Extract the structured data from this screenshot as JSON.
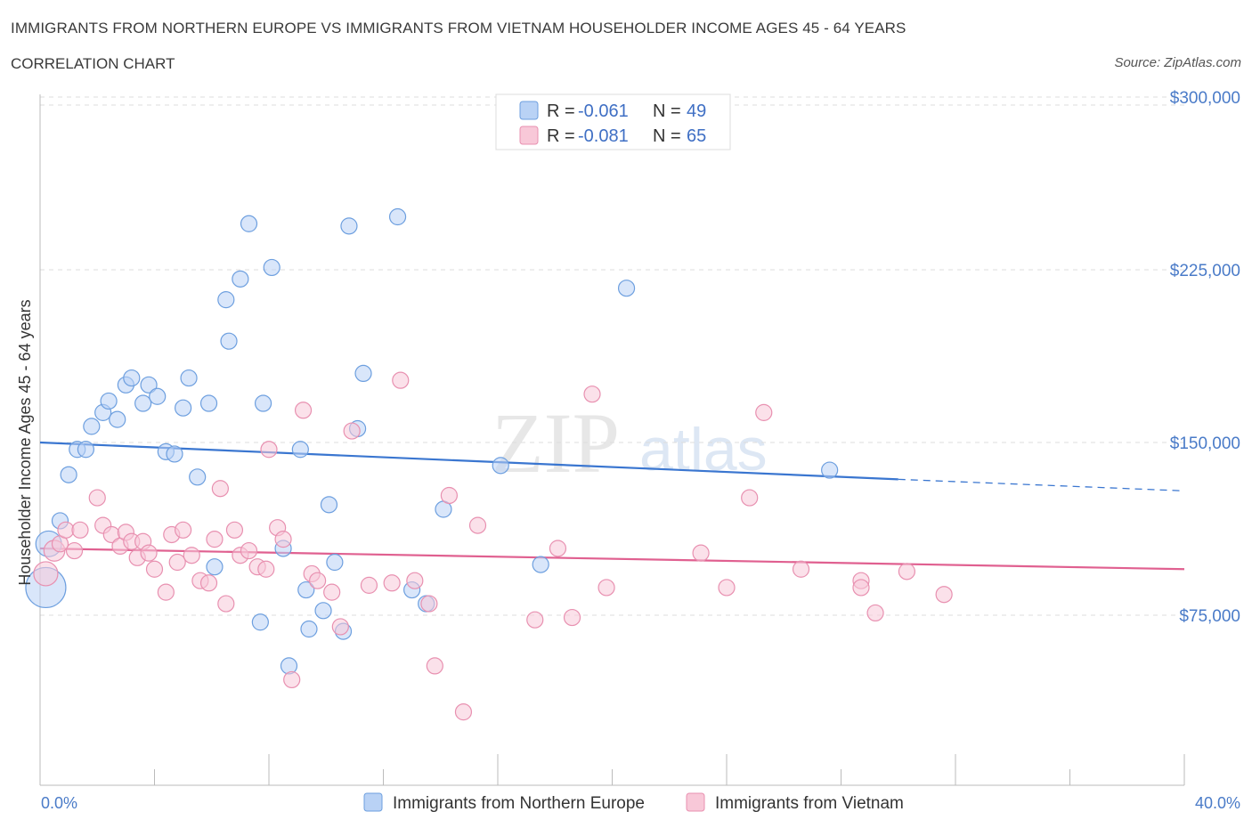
{
  "title": "IMMIGRANTS FROM NORTHERN EUROPE VS IMMIGRANTS FROM VIETNAM HOUSEHOLDER INCOME AGES 45 - 64 YEARS",
  "subtitle": "CORRELATION CHART",
  "source": "Source: ZipAtlas.com",
  "watermark": {
    "zip": "ZIP",
    "atlas": "atlas"
  },
  "colors": {
    "blue_fill": "#b9d2f5",
    "blue_stroke": "#6d9fdf",
    "blue_line": "#3a76d0",
    "pink_fill": "#f8c8d8",
    "pink_stroke": "#e890b0",
    "pink_line": "#e06090",
    "tick_label": "#4a7bc8",
    "grid": "#dddddd"
  },
  "chart_data": {
    "type": "scatter",
    "title": "IMMIGRANTS FROM NORTHERN EUROPE VS IMMIGRANTS FROM VIETNAM HOUSEHOLDER INCOME AGES 45 - 64 YEARS",
    "ylabel": "Householder Income Ages 45 - 64 years",
    "xlim": [
      0,
      40
    ],
    "ylim": [
      0,
      300000
    ],
    "x_tick_labels": [
      "0.0%",
      "40.0%"
    ],
    "y_ticks": [
      75000,
      150000,
      225000,
      300000
    ],
    "y_tick_labels": [
      "$75,000",
      "$150,000",
      "$225,000",
      "$300,000"
    ],
    "legend": [
      {
        "r_label": "R =",
        "r_value": "-0.061",
        "n_label": "N =",
        "n_value": "49"
      },
      {
        "r_label": "R =",
        "r_value": "-0.081",
        "n_label": "N =",
        "n_value": "65"
      }
    ],
    "series": [
      {
        "name": "Immigrants from Northern Europe",
        "color": "blue",
        "trend": {
          "x0": 0,
          "y0": 150000,
          "x1": 30,
          "y1": 134000,
          "dash_to_x": 40,
          "dash_to_y": 129000
        },
        "points": [
          [
            0.2,
            87000,
            2.5
          ],
          [
            0.3,
            106000,
            1.6
          ],
          [
            0.7,
            116000,
            1
          ],
          [
            1.0,
            136000,
            1
          ],
          [
            1.3,
            147000,
            1
          ],
          [
            1.6,
            147000,
            1
          ],
          [
            1.8,
            157000,
            1
          ],
          [
            2.2,
            163000,
            1
          ],
          [
            2.4,
            168000,
            1
          ],
          [
            2.7,
            160000,
            1
          ],
          [
            3.0,
            175000,
            1
          ],
          [
            3.2,
            178000,
            1
          ],
          [
            3.6,
            167000,
            1
          ],
          [
            3.8,
            175000,
            1
          ],
          [
            4.1,
            170000,
            1
          ],
          [
            4.4,
            146000,
            1
          ],
          [
            4.7,
            145000,
            1
          ],
          [
            5.0,
            165000,
            1
          ],
          [
            5.2,
            178000,
            1
          ],
          [
            5.5,
            135000,
            1
          ],
          [
            5.9,
            167000,
            1
          ],
          [
            6.1,
            96000,
            1
          ],
          [
            6.5,
            212000,
            1
          ],
          [
            6.6,
            194000,
            1
          ],
          [
            7.0,
            221000,
            1
          ],
          [
            7.3,
            245000,
            1
          ],
          [
            7.7,
            72000,
            1
          ],
          [
            7.8,
            167000,
            1
          ],
          [
            8.1,
            226000,
            1
          ],
          [
            8.5,
            104000,
            1
          ],
          [
            8.7,
            53000,
            1
          ],
          [
            9.1,
            147000,
            1
          ],
          [
            9.3,
            86000,
            1
          ],
          [
            9.4,
            69000,
            1
          ],
          [
            9.9,
            77000,
            1
          ],
          [
            10.1,
            123000,
            1
          ],
          [
            10.3,
            98000,
            1
          ],
          [
            10.6,
            68000,
            1
          ],
          [
            10.8,
            244000,
            1
          ],
          [
            11.1,
            156000,
            1
          ],
          [
            11.3,
            180000,
            1
          ],
          [
            12.5,
            248000,
            1
          ],
          [
            13.0,
            86000,
            1
          ],
          [
            13.5,
            80000,
            1
          ],
          [
            14.1,
            121000,
            1
          ],
          [
            16.1,
            140000,
            1
          ],
          [
            17.5,
            97000,
            1
          ],
          [
            20.5,
            217000,
            1
          ],
          [
            27.6,
            138000,
            1
          ]
        ]
      },
      {
        "name": "Immigrants from Vietnam",
        "color": "pink",
        "trend": {
          "x0": 0,
          "y0": 104000,
          "x1": 40,
          "y1": 95000
        },
        "points": [
          [
            0.2,
            93000,
            1.5
          ],
          [
            0.5,
            103000,
            1.3
          ],
          [
            0.7,
            106000,
            1
          ],
          [
            0.9,
            112000,
            1
          ],
          [
            1.2,
            103000,
            1
          ],
          [
            1.4,
            112000,
            1
          ],
          [
            2.0,
            126000,
            1
          ],
          [
            2.2,
            114000,
            1
          ],
          [
            2.5,
            110000,
            1
          ],
          [
            2.8,
            105000,
            1
          ],
          [
            3.0,
            111000,
            1
          ],
          [
            3.2,
            107000,
            1
          ],
          [
            3.4,
            100000,
            1
          ],
          [
            3.6,
            107000,
            1
          ],
          [
            3.8,
            102000,
            1
          ],
          [
            4.0,
            95000,
            1
          ],
          [
            4.4,
            85000,
            1
          ],
          [
            4.6,
            110000,
            1
          ],
          [
            4.8,
            98000,
            1
          ],
          [
            5.0,
            112000,
            1
          ],
          [
            5.3,
            101000,
            1
          ],
          [
            5.6,
            90000,
            1
          ],
          [
            5.9,
            89000,
            1
          ],
          [
            6.1,
            108000,
            1
          ],
          [
            6.3,
            130000,
            1
          ],
          [
            6.5,
            80000,
            1
          ],
          [
            6.8,
            112000,
            1
          ],
          [
            7.0,
            101000,
            1
          ],
          [
            7.3,
            103000,
            1
          ],
          [
            7.6,
            96000,
            1
          ],
          [
            7.9,
            95000,
            1
          ],
          [
            8.0,
            147000,
            1
          ],
          [
            8.3,
            113000,
            1
          ],
          [
            8.5,
            108000,
            1
          ],
          [
            8.8,
            47000,
            1
          ],
          [
            9.2,
            164000,
            1
          ],
          [
            9.5,
            93000,
            1
          ],
          [
            9.7,
            90000,
            1
          ],
          [
            10.2,
            85000,
            1
          ],
          [
            10.5,
            70000,
            1
          ],
          [
            10.9,
            155000,
            1
          ],
          [
            11.5,
            88000,
            1
          ],
          [
            12.3,
            89000,
            1
          ],
          [
            12.6,
            177000,
            1
          ],
          [
            13.1,
            90000,
            1
          ],
          [
            13.6,
            80000,
            1
          ],
          [
            13.8,
            53000,
            1
          ],
          [
            14.3,
            127000,
            1
          ],
          [
            14.8,
            33000,
            1
          ],
          [
            15.3,
            114000,
            1
          ],
          [
            17.3,
            73000,
            1
          ],
          [
            18.1,
            104000,
            1
          ],
          [
            18.6,
            74000,
            1
          ],
          [
            19.3,
            171000,
            1
          ],
          [
            19.8,
            87000,
            1
          ],
          [
            23.1,
            102000,
            1
          ],
          [
            24.0,
            87000,
            1
          ],
          [
            24.8,
            126000,
            1
          ],
          [
            25.3,
            163000,
            1
          ],
          [
            26.6,
            95000,
            1
          ],
          [
            28.7,
            90000,
            1
          ],
          [
            28.7,
            87000,
            1
          ],
          [
            29.2,
            76000,
            1
          ],
          [
            30.3,
            94000,
            1
          ],
          [
            31.6,
            84000,
            1
          ]
        ]
      }
    ]
  },
  "bottom_legend": [
    {
      "label": "Immigrants from Northern Europe"
    },
    {
      "label": "Immigrants from Vietnam"
    }
  ]
}
